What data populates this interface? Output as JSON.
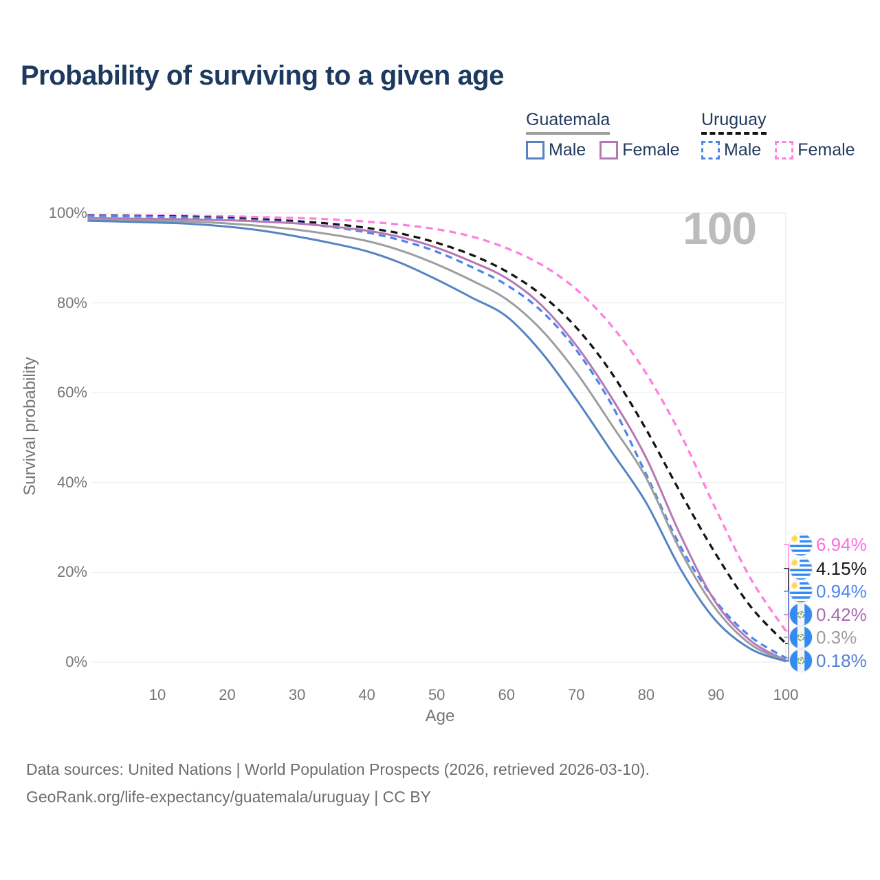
{
  "header": {
    "title": "Probability of surviving to a given age"
  },
  "legend": {
    "groups": [
      {
        "name": "Guatemala",
        "line_style": "solid",
        "line_color": "#9e9e9e",
        "items": [
          {
            "label": "Male",
            "color": "#5584c4"
          },
          {
            "label": "Female",
            "color": "#b578b5"
          }
        ]
      },
      {
        "name": "Uruguay",
        "line_style": "dashed",
        "line_color": "#141414",
        "items": [
          {
            "label": "Male",
            "color": "#4b86f0"
          },
          {
            "label": "Female",
            "color": "#ff80e0"
          }
        ]
      }
    ]
  },
  "chart_data": {
    "type": "line",
    "title": "Probability of surviving to a given age",
    "xlabel": "Age",
    "ylabel": "Survival probability",
    "xlim": [
      0,
      100
    ],
    "ylim": [
      0,
      100
    ],
    "grid": "horizontal",
    "legend_position": "top-right",
    "watermark": "100",
    "x_ticks": [
      10,
      20,
      30,
      40,
      50,
      60,
      70,
      80,
      90,
      100
    ],
    "y_ticks": [
      {
        "label": "100%",
        "value": 100
      },
      {
        "label": "80%",
        "value": 80
      },
      {
        "label": "60%",
        "value": 60
      },
      {
        "label": "40%",
        "value": 40
      },
      {
        "label": "20%",
        "value": 20
      },
      {
        "label": "0%",
        "value": 0
      }
    ],
    "x": [
      0,
      5,
      10,
      15,
      20,
      25,
      30,
      35,
      40,
      45,
      50,
      55,
      60,
      65,
      70,
      75,
      80,
      85,
      90,
      95,
      100
    ],
    "series": [
      {
        "name": "Uruguay Female",
        "country": "Uruguay",
        "sex": "Female",
        "color": "#ff80e0",
        "dashed": true,
        "values": [
          99.6,
          99.5,
          99.5,
          99.4,
          99.3,
          99.1,
          98.9,
          98.6,
          98.1,
          97.4,
          96.4,
          94.8,
          92.2,
          88.5,
          83.0,
          75.0,
          64.3,
          50.5,
          34.0,
          18.5,
          6.94
        ],
        "end_label": "6.94%",
        "end_label_color": "#ff6ede"
      },
      {
        "name": "Uruguay Total",
        "country": "Uruguay",
        "sex": "Total",
        "color": "#141414",
        "dashed": true,
        "values": [
          99.5,
          99.4,
          99.3,
          99.2,
          98.9,
          98.6,
          98.2,
          97.6,
          96.7,
          95.4,
          93.4,
          90.7,
          87.0,
          81.8,
          74.5,
          64.5,
          51.8,
          37.5,
          24.0,
          12.3,
          4.15
        ],
        "end_label": "4.15%",
        "end_label_color": "#1a1a1a"
      },
      {
        "name": "Uruguay Male",
        "country": "Uruguay",
        "sex": "Male",
        "color": "#4b86f0",
        "dashed": true,
        "values": [
          99.4,
          99.3,
          99.2,
          99.0,
          98.7,
          98.3,
          97.8,
          96.9,
          95.7,
          93.9,
          91.4,
          88.0,
          84.0,
          78.2,
          69.5,
          57.5,
          41.8,
          25.5,
          13.5,
          5.6,
          0.94
        ],
        "end_label": "0.94%",
        "end_label_color": "#4d86f0"
      },
      {
        "name": "Guatemala Female",
        "country": "Guatemala",
        "sex": "Female",
        "color": "#b578b5",
        "dashed": false,
        "values": [
          98.9,
          98.8,
          98.7,
          98.6,
          98.4,
          98.1,
          97.7,
          97.0,
          96.1,
          94.6,
          92.3,
          89.2,
          85.5,
          79.5,
          70.5,
          59.0,
          45.5,
          28.0,
          13.2,
          4.7,
          0.42
        ],
        "end_label": "0.42%",
        "end_label_color": "#aa6bb0"
      },
      {
        "name": "Guatemala Total",
        "country": "Guatemala",
        "sex": "Total",
        "color": "#9e9e9e",
        "dashed": false,
        "values": [
          98.6,
          98.4,
          98.3,
          98.1,
          97.7,
          97.1,
          96.3,
          95.2,
          93.8,
          91.6,
          88.6,
          85.0,
          80.8,
          74.0,
          64.5,
          53.0,
          41.0,
          24.5,
          11.8,
          3.9,
          0.3
        ],
        "end_label": "0.3%",
        "end_label_color": "#9e9e9e"
      },
      {
        "name": "Guatemala Male",
        "country": "Guatemala",
        "sex": "Male",
        "color": "#5584c4",
        "dashed": false,
        "values": [
          98.3,
          98.1,
          97.9,
          97.6,
          97.0,
          96.1,
          94.8,
          93.3,
          91.5,
          88.8,
          85.2,
          81.2,
          77.0,
          69.0,
          58.5,
          47.0,
          35.5,
          20.5,
          9.2,
          2.9,
          0.18
        ],
        "end_label": "0.18%",
        "end_label_color": "#5581d0"
      }
    ]
  },
  "footer": {
    "line1": "Data sources: United Nations | World Population Prospects (2026, retrieved 2026-03-10).",
    "line2": "GeoRank.org/life-expectancy/guatemala/uruguay | CC BY"
  }
}
